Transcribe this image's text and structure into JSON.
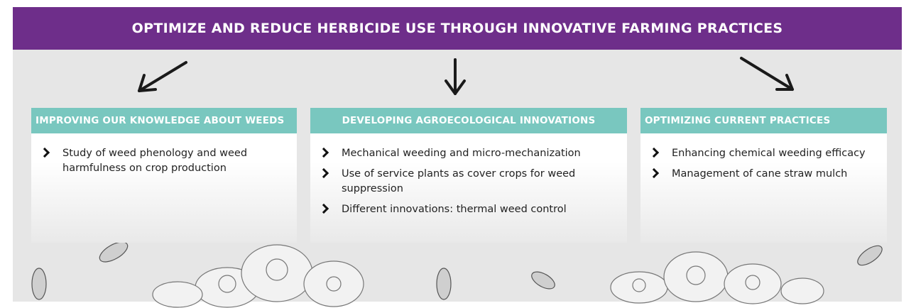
{
  "header": {
    "title": "OPTIMIZE AND REDUCE HERBICIDE USE THROUGH INNOVATIVE FARMING PRACTICES"
  },
  "columns": [
    {
      "title": "IMPROVING OUR KNOWLEDGE ABOUT WEEDS",
      "items": [
        "Study of weed phenology and weed harmfulness on crop production"
      ]
    },
    {
      "title": "DEVELOPING AGROECOLOGICAL INNOVATIONS",
      "items": [
        "Mechanical weeding and micro-mechanization",
        "Use of service plants as cover crops for weed suppression",
        "Different innovations: thermal weed control"
      ]
    },
    {
      "title": "OPTIMIZING CURRENT PRACTICES",
      "items": [
        "Enhancing chemical weeding efficacy",
        "Management of cane straw mulch"
      ]
    }
  ]
}
